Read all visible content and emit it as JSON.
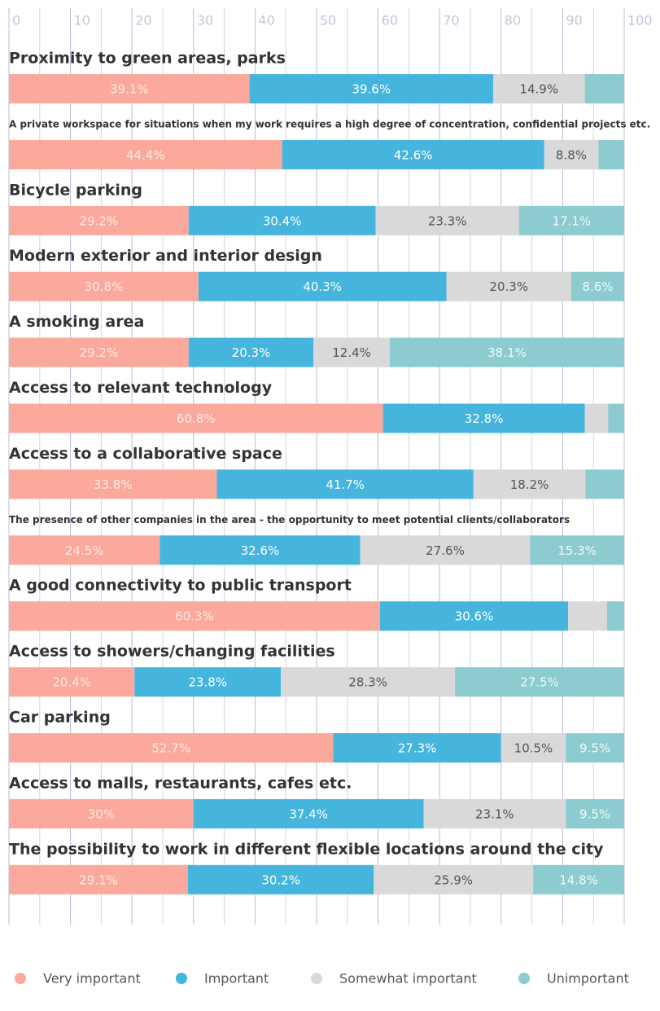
{
  "chart_data": {
    "type": "stacked-bar-horizontal",
    "categories": [
      "Proximity to green areas, parks",
      "A private workspace for situations when my work requires a high degree of concentration, confidential projects etc.",
      "Bicycle parking",
      "Modern exterior and interior design",
      "A smoking area",
      "Access to relevant technology",
      "Access to a collaborative space",
      "The presence of other companies in the area - the opportunity to meet potential clients/collaborators",
      "A good connectivity to public transport",
      "Access to showers/changing facilities",
      "Car parking",
      "Access to malls, restaurants, cafes etc.",
      "The possibility to work in different flexible locations around the city"
    ],
    "series": [
      {
        "name": "Very important",
        "color": "#fba99c",
        "label_color": "#ffe9e4",
        "values": [
          39.1,
          44.4,
          29.2,
          30.8,
          29.2,
          60.8,
          33.8,
          24.5,
          60.3,
          20.4,
          52.7,
          30,
          29.1
        ],
        "value_labels": [
          "39.1%",
          "44.4%",
          "29.2%",
          "30.8%",
          "29.2%",
          "60.8%",
          "33.8%",
          "24.5%",
          "60.3%",
          "20.4%",
          "52.7%",
          "30%",
          "29.1%"
        ]
      },
      {
        "name": "Important",
        "color": "#45b5de",
        "label_color": "#ffffff",
        "values": [
          39.6,
          42.6,
          30.4,
          40.3,
          20.3,
          32.8,
          41.7,
          32.6,
          30.6,
          23.8,
          27.3,
          37.4,
          30.2
        ],
        "value_labels": [
          "39.6%",
          "42.6%",
          "30.4%",
          "40.3%",
          "20.3%",
          "32.8%",
          "41.7%",
          "32.6%",
          "30.6%",
          "23.8%",
          "27.3%",
          "37.4%",
          "30.2%"
        ]
      },
      {
        "name": "Somewhat important",
        "color": "#d9d9d9",
        "label_color": "#555555",
        "values": [
          14.9,
          8.8,
          23.3,
          20.3,
          12.4,
          3.8,
          18.2,
          27.6,
          6.3,
          28.3,
          10.5,
          23.1,
          25.9
        ],
        "value_labels": [
          "14.9%",
          "8.8%",
          "23.3%",
          "20.3%",
          "12.4%",
          null,
          "18.2%",
          "27.6%",
          null,
          "28.3%",
          "10.5%",
          "23.1%",
          "25.9%"
        ]
      },
      {
        "name": "Unimportant",
        "color": "#8ccbd0",
        "label_color": "#f2fafb",
        "values": [
          6.4,
          4.2,
          17.1,
          8.6,
          38.1,
          2.6,
          6.3,
          15.3,
          2.8,
          27.5,
          9.5,
          9.5,
          14.8
        ],
        "value_labels": [
          null,
          null,
          "17.1%",
          "8.6%",
          "38.1%",
          null,
          null,
          "15.3%",
          null,
          "27.5%",
          "9.5%",
          "9.5%",
          "14.8%"
        ]
      }
    ],
    "xlim": [
      0,
      100
    ],
    "xticks": [
      0,
      10,
      20,
      30,
      40,
      50,
      60,
      70,
      80,
      90,
      100
    ],
    "minor_xticks": [
      5,
      15,
      25,
      35,
      45,
      55,
      65,
      75,
      85,
      95
    ],
    "grid": true,
    "legend": "bottom"
  }
}
